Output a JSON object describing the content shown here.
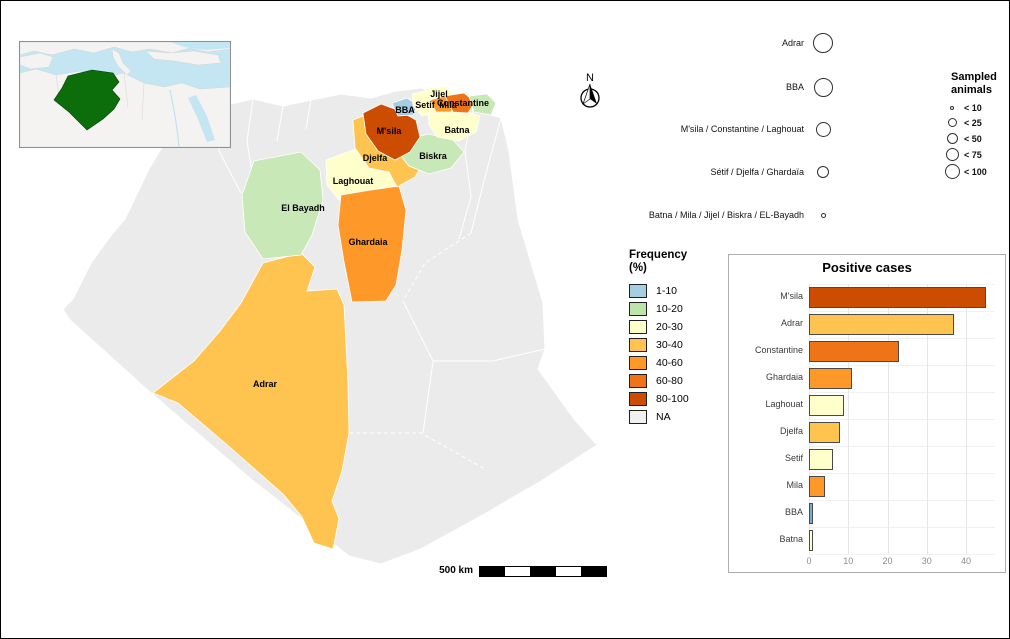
{
  "palette": {
    "sea": "#C3E6F2",
    "land": "#F4F3F1",
    "inset_algeria": "#0B6E0B",
    "map_base": "#EBEBEB"
  },
  "north": {
    "label": "N"
  },
  "scale_bar": {
    "label": "500 km",
    "segments": 5
  },
  "map": {
    "base_color": "#EBEBEB",
    "regions": {
      "adrar": {
        "label": "Adrar",
        "color": "#FEC44F"
      },
      "el_bayadh": {
        "label": "El Bayadh",
        "color": "#C8E8B8"
      },
      "laghouat": {
        "label": "Laghouat",
        "color": "#FFFFCC"
      },
      "ghardaia": {
        "label": "Ghardaia",
        "color": "#FE9929"
      },
      "djelfa": {
        "label": "Djelfa",
        "color": "#FEC44F"
      },
      "msila": {
        "label": "M'sila",
        "color": "#CC4C02"
      },
      "bba": {
        "label": "BBA",
        "color": "#A6CEE3"
      },
      "setif": {
        "label": "Setif",
        "color": "#FFFFCC"
      },
      "jijel": {
        "label": "Jijel",
        "color": "#FFFFCC"
      },
      "mila": {
        "label": "Mila",
        "color": "#FE9929"
      },
      "constantine": {
        "label": "Constantine",
        "color": "#EE7418"
      },
      "batna": {
        "label": "Batna",
        "color": "#FFFFCC"
      },
      "biskra": {
        "label": "Biskra",
        "color": "#C8E8B8"
      },
      "ne_region": {
        "label": "",
        "color": "#C8E8B8"
      }
    }
  },
  "circle_legend": {
    "rows": [
      {
        "label": "Adrar",
        "diameter": 20
      },
      {
        "label": "BBA",
        "diameter": 19
      },
      {
        "label": "M'sila / Constantine / Laghouat",
        "diameter": 15
      },
      {
        "label": "Sétif / Djelfa / Ghardaïa",
        "diameter": 12
      },
      {
        "label": "Batna / Mila / Jijel / Biskra / EL-Bayadh",
        "diameter": 5
      }
    ]
  },
  "sampled_legend": {
    "title": "Sampled animals",
    "items": [
      {
        "label": "< 10",
        "diameter": 4
      },
      {
        "label": "< 25",
        "diameter": 9
      },
      {
        "label": "< 50",
        "diameter": 11
      },
      {
        "label": "< 75",
        "diameter": 13
      },
      {
        "label": "< 100",
        "diameter": 15
      }
    ]
  },
  "frequency_legend": {
    "title": "Frequency",
    "subtitle": "(%)",
    "items": [
      {
        "label": "1-10",
        "color": "#A6CEE3"
      },
      {
        "label": "10-20",
        "color": "#BEE3AB"
      },
      {
        "label": "20-30",
        "color": "#FFFFCC"
      },
      {
        "label": "30-40",
        "color": "#FEC44F"
      },
      {
        "label": "40-60",
        "color": "#FE9929"
      },
      {
        "label": "60-80",
        "color": "#EE7418"
      },
      {
        "label": "80-100",
        "color": "#CC4C02"
      },
      {
        "label": "NA",
        "color": "#F0F0F0"
      }
    ]
  },
  "chart_data": {
    "type": "bar",
    "orientation": "horizontal",
    "title": "Positive cases",
    "xlabel": "",
    "ylabel": "",
    "categories": [
      "M'sila",
      "Adrar",
      "Constantine",
      "Ghardaia",
      "Laghouat",
      "Djelfa",
      "Setif",
      "Mila",
      "BBA",
      "Batna"
    ],
    "values": [
      45,
      37,
      23,
      11,
      9,
      8,
      6,
      4,
      1,
      1
    ],
    "bar_colors": [
      "#CC4C02",
      "#FEC44F",
      "#EE7418",
      "#FE9929",
      "#FFFFCC",
      "#FEC44F",
      "#FFFFCC",
      "#FE9929",
      "#74AED4",
      "#FFFFCC"
    ],
    "xlim": [
      0,
      45
    ],
    "xticks": [
      0,
      10,
      20,
      30,
      40
    ],
    "grid": true,
    "legend_position": "none"
  }
}
